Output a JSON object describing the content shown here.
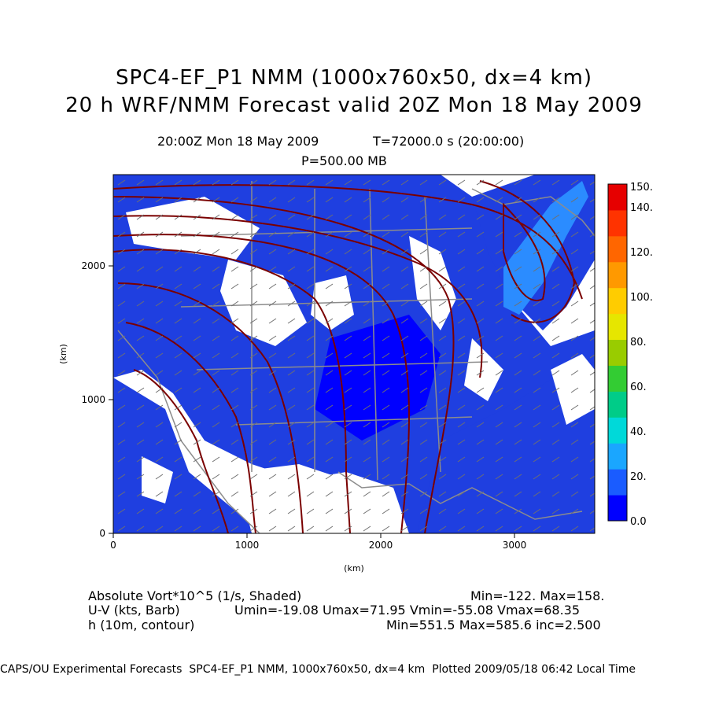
{
  "title": {
    "line1": "SPC4-EF_P1 NMM (1000x760x50, dx=4 km)",
    "line2": "20 h WRF/NMM Forecast valid 20Z Mon 18 May 2009"
  },
  "subtitle": {
    "time": "20:00Z Mon 18 May 2009",
    "t_seconds": "T=72000.0 s (20:00:00)",
    "pressure": "P=500.00 MB"
  },
  "axes": {
    "xlabel": "(km)",
    "ylabel": "(km)",
    "x_ticks": [
      "0",
      "1000",
      "2000",
      "3000"
    ],
    "y_ticks": [
      "0",
      "1000",
      "2000"
    ]
  },
  "colorbar": {
    "labels": [
      "0.0",
      "20.",
      "40.",
      "60.",
      "80.",
      "100.",
      "120.",
      "140.",
      "150."
    ],
    "colors": [
      "#0000ff",
      "#1a5cff",
      "#1aa6ff",
      "#00d9d9",
      "#00cc88",
      "#33cc33",
      "#99cc00",
      "#e6e600",
      "#ffcc00",
      "#ff9900",
      "#ff6600",
      "#ff3300",
      "#e60000"
    ]
  },
  "legend": {
    "vort_label": "Absolute Vort*10^5 (1/s, Shaded)",
    "vort_stats": "Min=-122. Max=158.",
    "uv_label": "U-V (kts, Barb)",
    "uv_stats": "Umin=-19.08 Umax=71.95 Vmin=-55.08 Vmax=68.35",
    "h_label": "h (10m, contour)",
    "h_stats": "Min=551.5 Max=585.6 inc=2.500"
  },
  "footer": "CAPS/OU Experimental Forecasts  SPC4-EF_P1 NMM, 1000x760x50, dx=4 km  Plotted 2009/05/18 06:42 Local Time",
  "map_colors": {
    "vort_base": "#1f3fe0",
    "vort_dark": "#0000ff",
    "vort_light": "#2b8cff",
    "contour": "#7a0000",
    "borders": "#8c8c8c",
    "barbs": "#707070"
  }
}
